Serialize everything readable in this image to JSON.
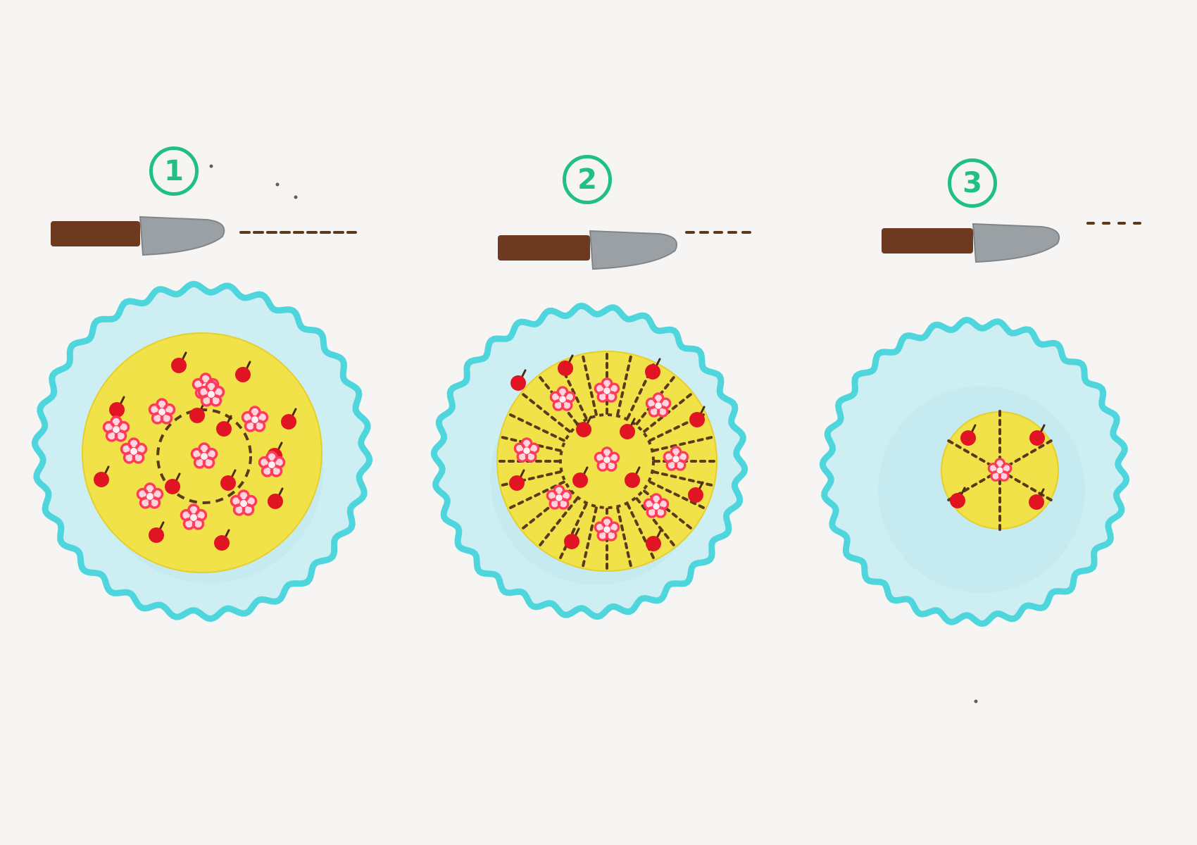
{
  "steps": [
    {
      "label": "1",
      "cut": "ring",
      "cherries": 13,
      "flowers": 11
    },
    {
      "label": "2",
      "cut": "radial-slices",
      "cherries": 12,
      "flowers": 9
    },
    {
      "label": "3",
      "cut": "wedges",
      "cherries": 4,
      "flowers": 1
    }
  ],
  "colors": {
    "paper": "#f6f5f3",
    "plate_rim": "#4fd6dd",
    "plate_fill": "#cdeef2",
    "cake": "#f2e24a",
    "cherry": "#e01422",
    "flower": "#ff3b5c",
    "cut_line": "#5a3a1a",
    "knife_handle": "#6e3a1f",
    "knife_blade": "#9aa0a3",
    "step_badge": "#1fbf86"
  },
  "icons": [
    "knife-icon",
    "plate-icon",
    "cake-icon",
    "cherry-icon",
    "flower-icon"
  ]
}
